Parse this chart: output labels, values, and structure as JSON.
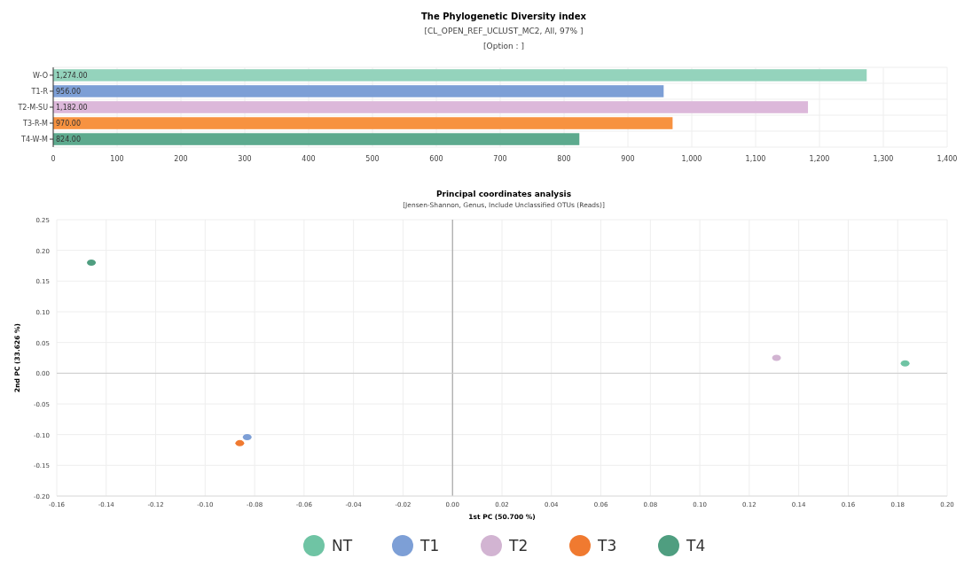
{
  "chart_data": [
    {
      "type": "bar",
      "orientation": "horizontal",
      "title": "The Phylogenetic Diversity index",
      "subtitle": "[CL_OPEN_REF_UCLUST_MC2, All, 97% ]",
      "annotations": [
        "[Option : ]"
      ],
      "categories": [
        "W-O",
        "T1-R",
        "T2-M-SU",
        "T3-R-M",
        "T4-W-M"
      ],
      "values": [
        1274,
        956,
        1182,
        970,
        824
      ],
      "colors": [
        "#94d3bc",
        "#7d9fd6",
        "#dcb8da",
        "#f79240",
        "#5daa8e"
      ],
      "value_labels": [
        "1,274.00",
        "956.00",
        "1,182.00",
        "970.00",
        "824.00"
      ],
      "xlim": [
        0,
        1400
      ],
      "xticks": [
        0,
        100,
        200,
        300,
        400,
        500,
        600,
        700,
        800,
        900,
        {
          "value": 1000,
          "label": "1,000"
        },
        {
          "value": 1100,
          "label": "1,100"
        },
        {
          "value": 1200,
          "label": "1,200"
        },
        {
          "value": 1300,
          "label": "1,300"
        },
        {
          "value": 1400,
          "label": "1,400"
        }
      ],
      "grid": true
    },
    {
      "type": "scatter",
      "title": "Principal coordinates analysis",
      "subtitle": "[Jensen-Shannon, Genus, Include Unclassified OTUs (Reads)]",
      "xlabel": "1st PC (50.700 %)",
      "ylabel": "2nd PC (33.626 %)",
      "series": [
        {
          "name": "NT",
          "color": "#6fc4a4",
          "x": [
            0.183
          ],
          "values": [
            0.016
          ]
        },
        {
          "name": "T1",
          "color": "#7d9fd6",
          "x": [
            -0.083
          ],
          "values": [
            -0.104
          ]
        },
        {
          "name": "T2",
          "color": "#d2b4d2",
          "x": [
            0.131
          ],
          "values": [
            0.025
          ]
        },
        {
          "name": "T3",
          "color": "#f07a30",
          "x": [
            -0.086
          ],
          "values": [
            -0.114
          ]
        },
        {
          "name": "T4",
          "color": "#4f9e80",
          "x": [
            -0.146
          ],
          "values": [
            0.18
          ]
        }
      ],
      "xlim": [
        -0.16,
        0.2
      ],
      "xticks": [
        {
          "value": -0.16,
          "label": "-0.16"
        },
        {
          "value": -0.14,
          "label": "-0.14"
        },
        {
          "value": -0.12,
          "label": "-0.12"
        },
        {
          "value": -0.1,
          "label": "-0.10"
        },
        {
          "value": -0.08,
          "label": "-0.08"
        },
        {
          "value": -0.06,
          "label": "-0.06"
        },
        {
          "value": -0.04,
          "label": "-0.04"
        },
        {
          "value": -0.02,
          "label": "-0.02"
        },
        {
          "value": 0,
          "label": "0.00"
        },
        {
          "value": 0.02,
          "label": "0.02"
        },
        {
          "value": 0.04,
          "label": "0.04"
        },
        {
          "value": 0.06,
          "label": "0.06"
        },
        {
          "value": 0.08,
          "label": "0.08"
        },
        {
          "value": 0.1,
          "label": "0.10"
        },
        {
          "value": 0.12,
          "label": "0.12"
        },
        {
          "value": 0.14,
          "label": "0.14"
        },
        {
          "value": 0.16,
          "label": "0.16"
        },
        {
          "value": 0.18,
          "label": "0.18"
        },
        {
          "value": 0.2,
          "label": "0.20"
        }
      ],
      "ylim": [
        -0.2,
        0.25
      ],
      "yticks": [
        {
          "value": -0.2,
          "label": "-0.20"
        },
        {
          "value": -0.15,
          "label": "-0.15"
        },
        {
          "value": -0.1,
          "label": "-0.10"
        },
        {
          "value": -0.05,
          "label": "-0.05"
        },
        {
          "value": 0,
          "label": "0.00"
        },
        {
          "value": 0.05,
          "label": "0.05"
        },
        {
          "value": 0.1,
          "label": "0.10"
        },
        {
          "value": 0.15,
          "label": "0.15"
        },
        {
          "value": 0.2,
          "label": "0.20"
        },
        {
          "value": 0.25,
          "label": "0.25"
        }
      ],
      "ref_lines": [
        {
          "axis": "x",
          "value": 0,
          "color": "#999999"
        },
        {
          "axis": "y",
          "value": 0,
          "color": "#cccccc"
        }
      ],
      "grid": true,
      "marker": "circle",
      "legend": "bottom"
    }
  ]
}
